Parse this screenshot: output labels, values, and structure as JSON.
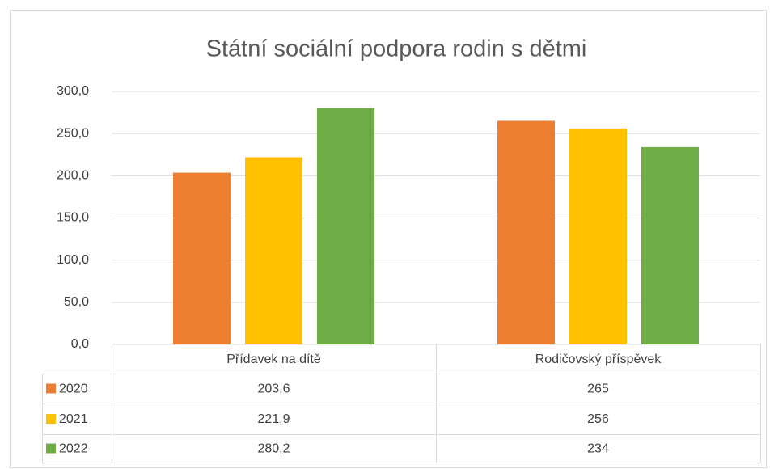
{
  "chart_data": {
    "type": "bar",
    "title": "Státní sociální podpora rodin s dětmi",
    "categories": [
      "Přídavek na dítě",
      "Rodičovský příspěvek"
    ],
    "series": [
      {
        "name": "2020",
        "color": "#ed7d31",
        "values": [
          203.6,
          265
        ],
        "value_labels": [
          "203,6",
          "265"
        ]
      },
      {
        "name": "2021",
        "color": "#ffc000",
        "values": [
          221.9,
          256
        ],
        "value_labels": [
          "221,9",
          "256"
        ]
      },
      {
        "name": "2022",
        "color": "#70ad47",
        "values": [
          280.2,
          234
        ],
        "value_labels": [
          "280,2",
          "234"
        ]
      }
    ],
    "ylim": [
      0,
      300
    ],
    "yticks": [
      {
        "value": 0,
        "label": "0,0"
      },
      {
        "value": 50,
        "label": "50,0"
      },
      {
        "value": 100,
        "label": "100,0"
      },
      {
        "value": 150,
        "label": "150,0"
      },
      {
        "value": 200,
        "label": "200,0"
      },
      {
        "value": 250,
        "label": "250,0"
      },
      {
        "value": 300,
        "label": "300,0"
      }
    ],
    "grid": true
  }
}
